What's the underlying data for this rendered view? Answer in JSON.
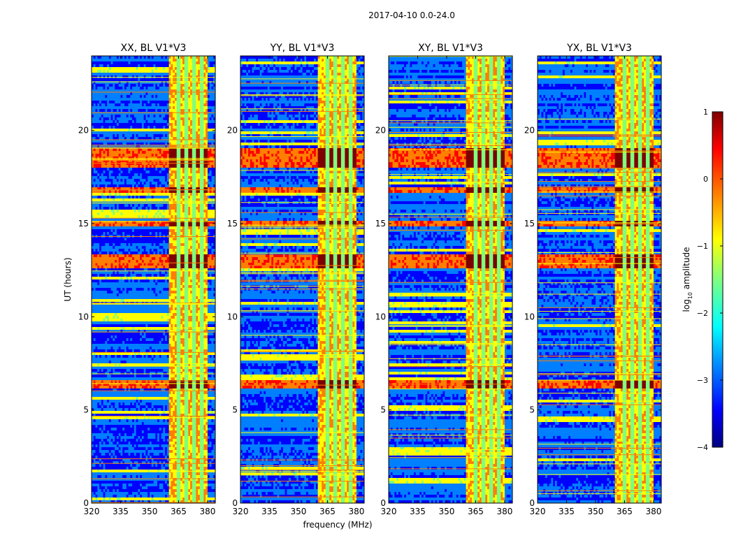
{
  "chart_data": {
    "type": "heatmap",
    "suptitle": "2017-04-10 0.0-24.0",
    "panels": [
      {
        "title": "XX, BL V1*V3"
      },
      {
        "title": "YY, BL V1*V3"
      },
      {
        "title": "XY, BL V1*V3"
      },
      {
        "title": "YX, BL V1*V3"
      }
    ],
    "xlabel": "frequency (MHz)",
    "ylabel": "UT (hours)",
    "xlim": [
      320,
      384
    ],
    "ylim": [
      0,
      24
    ],
    "xticks": [
      320,
      335,
      350,
      365,
      380
    ],
    "yticks": [
      0,
      5,
      10,
      15,
      20
    ],
    "colorbar": {
      "label_base": "log",
      "label_sub": "10",
      "label_rest": " amplitude",
      "range": [
        -4,
        1
      ],
      "ticks": [
        "1",
        "0",
        "−1",
        "−2",
        "−3",
        "−4"
      ],
      "tick_values": [
        1,
        0,
        -1,
        -2,
        -3,
        -4
      ],
      "colormap": "jet",
      "colors": [
        "#00007f",
        "#0000ff",
        "#007fff",
        "#00ffff",
        "#7fff7f",
        "#ffff00",
        "#ff7f00",
        "#ff0000",
        "#7f0000"
      ]
    },
    "rfi_band_mhz": [
      360,
      380
    ],
    "rfi_channel_edges_mhz": [
      365,
      369,
      373,
      377
    ],
    "strong_rfi_times_h": [
      [
        18.0,
        19.0
      ],
      [
        16.6,
        16.9
      ],
      [
        14.9,
        15.2
      ],
      [
        6.2,
        6.6
      ],
      [
        12.6,
        13.4
      ]
    ]
  }
}
